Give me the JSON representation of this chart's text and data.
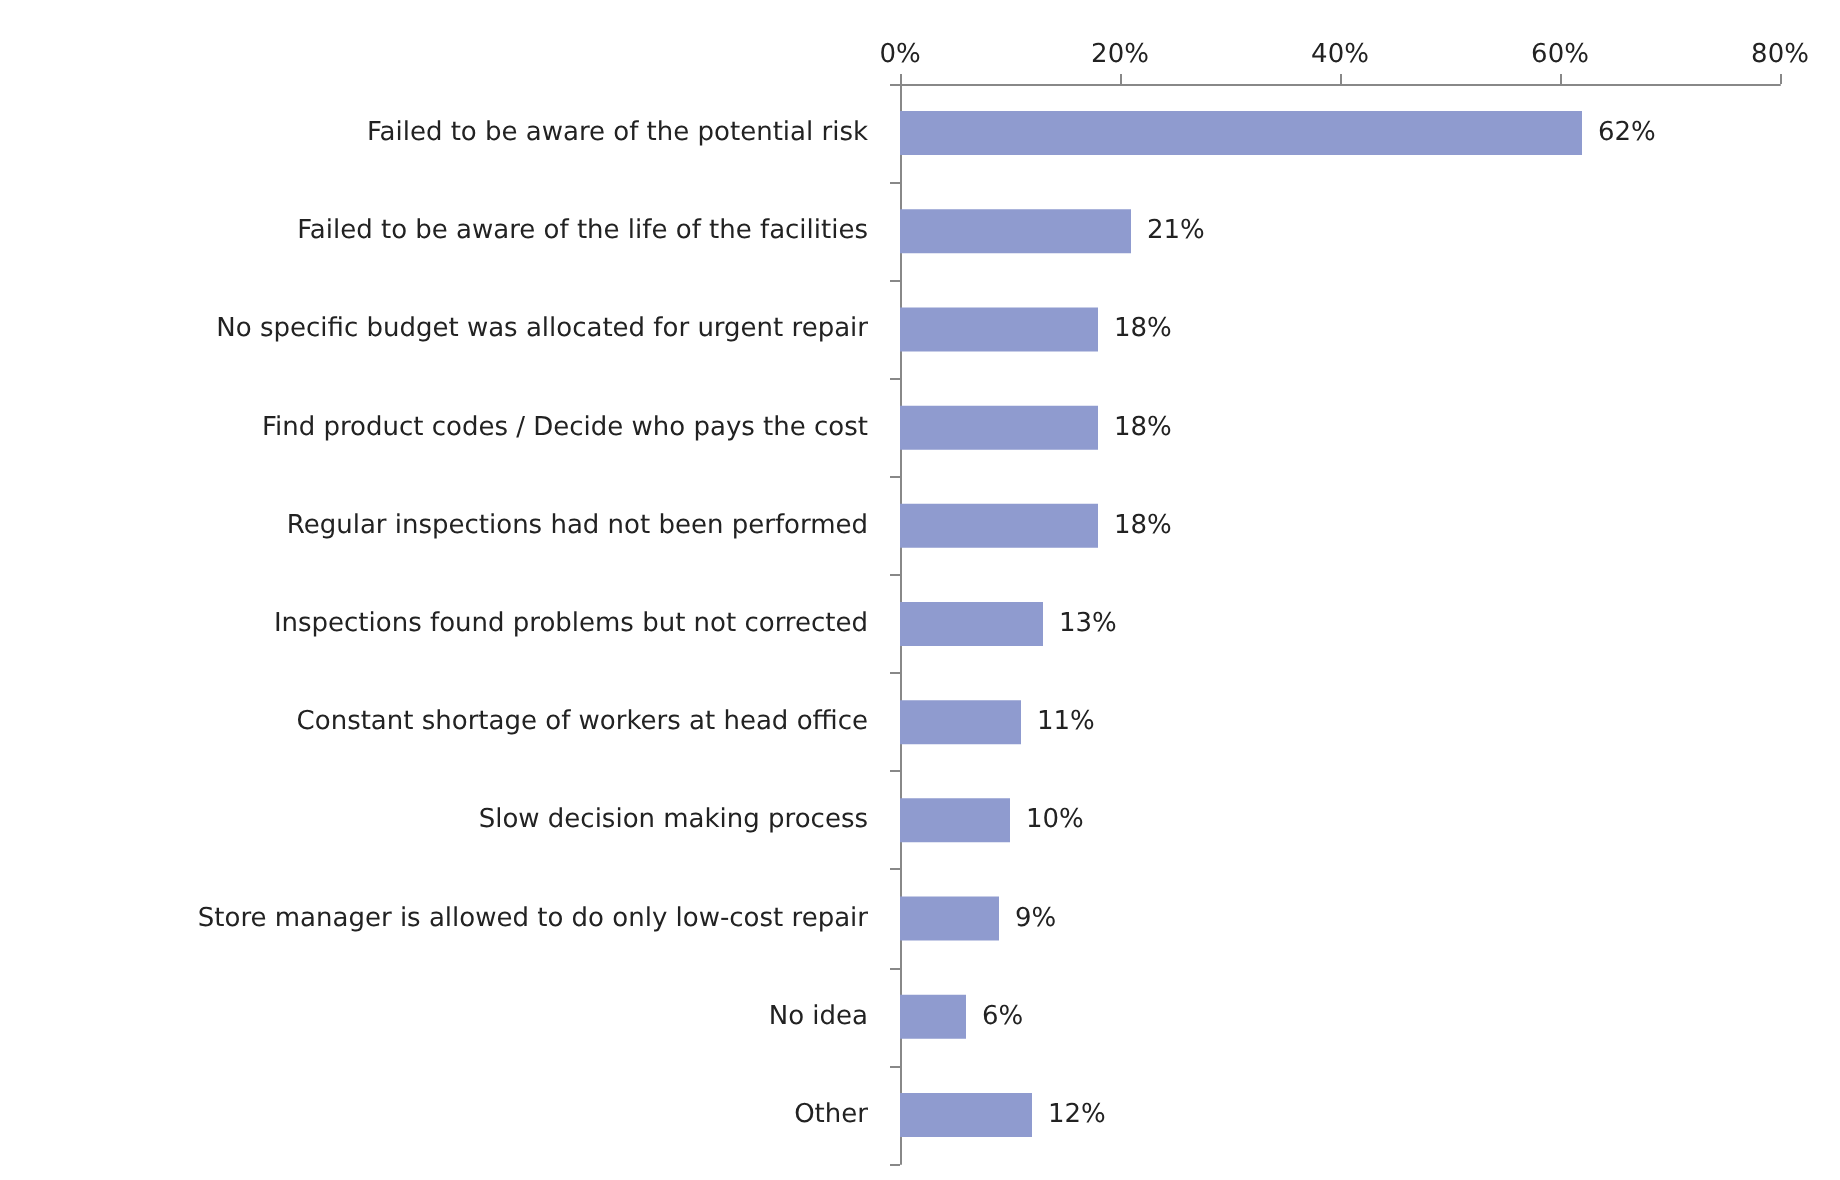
{
  "chart_data": {
    "type": "bar",
    "orientation": "horizontal",
    "categories": [
      "Failed to be aware of the potential risk",
      "Failed to be aware of the life of the facilities",
      "No specific budget was allocated for urgent repair",
      "Find product codes / Decide who pays the cost",
      "Regular inspections had not been performed",
      "Inspections found problems but not corrected",
      "Constant shortage of workers at head office",
      "Slow decision making process",
      "Store manager is allowed to do only low-cost repair",
      "No idea",
      "Other"
    ],
    "values": [
      62,
      21,
      18,
      18,
      18,
      13,
      11,
      10,
      9,
      6,
      12
    ],
    "value_labels": [
      "62%",
      "21%",
      "18%",
      "18%",
      "18%",
      "13%",
      "11%",
      "10%",
      "9%",
      "6%",
      "12%"
    ],
    "color": "#8f9bcf",
    "xlim": [
      0,
      80
    ],
    "xticks": [
      {
        "value": 0,
        "label": "0%"
      },
      {
        "value": 20,
        "label": "20%"
      },
      {
        "value": 40,
        "label": "40%"
      },
      {
        "value": 60,
        "label": "60%"
      },
      {
        "value": 80,
        "label": "80%"
      }
    ]
  }
}
